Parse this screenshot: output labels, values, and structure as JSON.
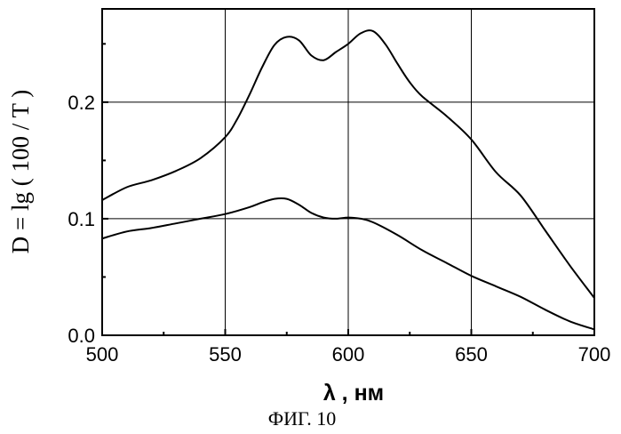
{
  "chart_data": {
    "type": "line",
    "xlabel": "λ , нм",
    "ylabel": "D = lg ( 100 / T )",
    "caption": "ФИГ. 10",
    "xlim": [
      500,
      700
    ],
    "ylim": [
      0.0,
      0.28
    ],
    "x_ticks": [
      500,
      550,
      600,
      650,
      700
    ],
    "x_tick_labels": [
      "500",
      "550",
      "600",
      "650",
      "700"
    ],
    "y_ticks": [
      0.0,
      0.1,
      0.2
    ],
    "y_tick_labels": [
      "0.0",
      "0.1",
      "0.2"
    ],
    "grid": true,
    "series": [
      {
        "x": [
          500,
          510,
          520,
          530,
          540,
          550,
          555,
          560,
          565,
          570,
          575,
          580,
          585,
          590,
          595,
          600,
          605,
          610,
          615,
          620,
          625,
          630,
          640,
          650,
          660,
          670,
          680,
          690,
          700
        ],
        "values": [
          0.116,
          0.127,
          0.133,
          0.141,
          0.152,
          0.17,
          0.186,
          0.207,
          0.23,
          0.249,
          0.256,
          0.253,
          0.24,
          0.236,
          0.243,
          0.25,
          0.259,
          0.261,
          0.25,
          0.233,
          0.217,
          0.205,
          0.188,
          0.168,
          0.14,
          0.12,
          0.09,
          0.06,
          0.032
        ]
      },
      {
        "x": [
          500,
          510,
          520,
          530,
          540,
          550,
          560,
          565,
          570,
          575,
          580,
          585,
          590,
          595,
          600,
          605,
          610,
          620,
          630,
          640,
          650,
          660,
          670,
          680,
          690,
          700
        ],
        "values": [
          0.083,
          0.089,
          0.092,
          0.096,
          0.1,
          0.104,
          0.11,
          0.114,
          0.117,
          0.117,
          0.112,
          0.105,
          0.101,
          0.1,
          0.101,
          0.1,
          0.097,
          0.086,
          0.073,
          0.062,
          0.051,
          0.042,
          0.033,
          0.022,
          0.012,
          0.005
        ]
      }
    ]
  }
}
